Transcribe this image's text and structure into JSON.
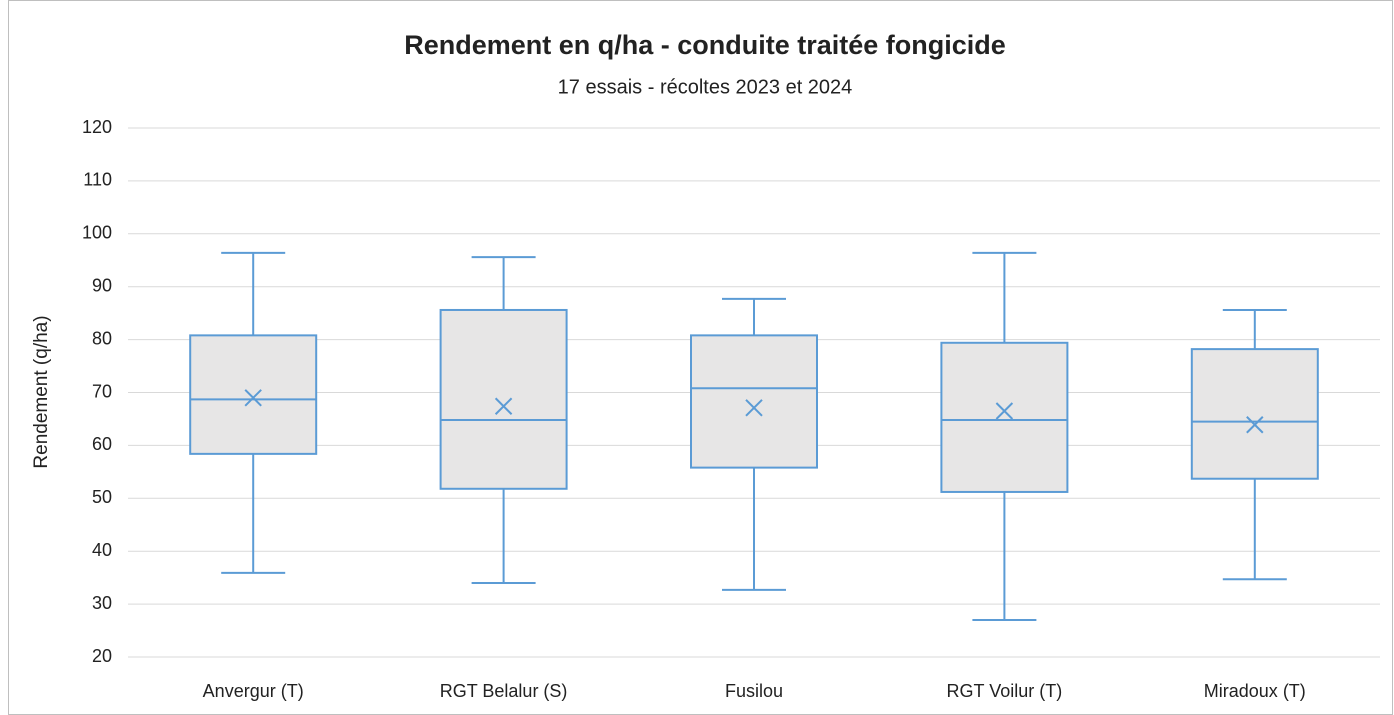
{
  "chart_data": {
    "type": "box",
    "title": "Rendement en q/ha - conduite traitée fongicide",
    "subtitle": "17 essais - récoltes 2023 et 2024",
    "y_label": "Rendement (q/ha)",
    "categories": [
      "Anvergur (T)",
      "RGT Belalur (S)",
      "Fusilou",
      "RGT Voilur (T)",
      "Miradoux (T)"
    ],
    "min": [
      35.9,
      34,
      32.7,
      27,
      34.7
    ],
    "q1": [
      58.4,
      51.8,
      55.8,
      51.2,
      53.7
    ],
    "median": [
      68.7,
      64.8,
      70.8,
      64.8,
      64.5
    ],
    "q3": [
      80.8,
      85.6,
      80.8,
      79.4,
      78.2
    ],
    "max": [
      96.4,
      95.6,
      87.7,
      96.4,
      85.6
    ],
    "mean": [
      69,
      67.4,
      67.1,
      66.5,
      63.9
    ],
    "color": "#5b9bd5",
    "box_fill": "#e7e6e6",
    "ylim": [
      20,
      120
    ],
    "yticks": [
      20,
      30,
      40,
      50,
      60,
      70,
      80,
      90,
      100,
      110,
      120
    ],
    "grid": true
  }
}
